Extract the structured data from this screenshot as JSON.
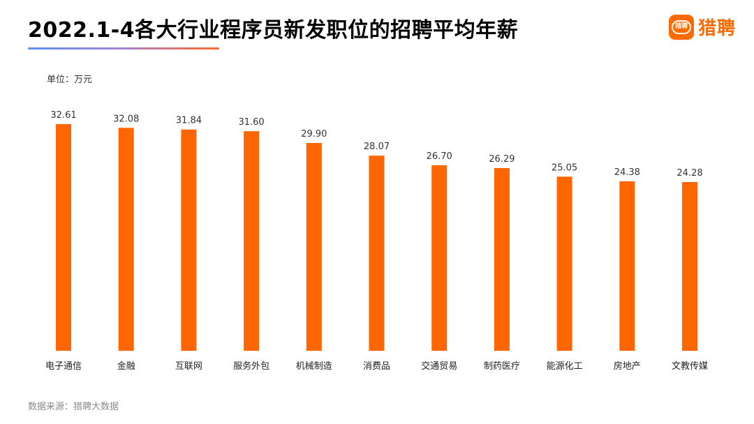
{
  "header": {
    "title": "2022.1-4各大行业程序员新发职位的招聘平均年薪",
    "brand_name": "猎聘",
    "brand_icon_text": "猎聘",
    "brand_icon": "liepin-logo-icon"
  },
  "unit_label": "单位：万元",
  "source_label": "数据来源：猎聘大数据",
  "colors": {
    "bar": "#ff6600",
    "brand": "#ff6a00"
  },
  "chart_data": {
    "type": "bar",
    "categories": [
      "电子通信",
      "金融",
      "互联网",
      "服务外包",
      "机械制造",
      "消费品",
      "交通贸易",
      "制药医疗",
      "能源化工",
      "房地产",
      "文教传媒"
    ],
    "values": [
      32.61,
      32.08,
      31.84,
      31.6,
      29.9,
      28.07,
      26.7,
      26.29,
      25.05,
      24.38,
      24.28
    ],
    "value_labels": [
      "32.61",
      "32.08",
      "31.84",
      "31.60",
      "29.90",
      "28.07",
      "26.70",
      "26.29",
      "25.05",
      "24.38",
      "24.28"
    ],
    "title": "2022.1-4各大行业程序员新发职位的招聘平均年薪",
    "xlabel": "",
    "ylabel": "单位：万元",
    "grid": false,
    "legend": "none"
  }
}
